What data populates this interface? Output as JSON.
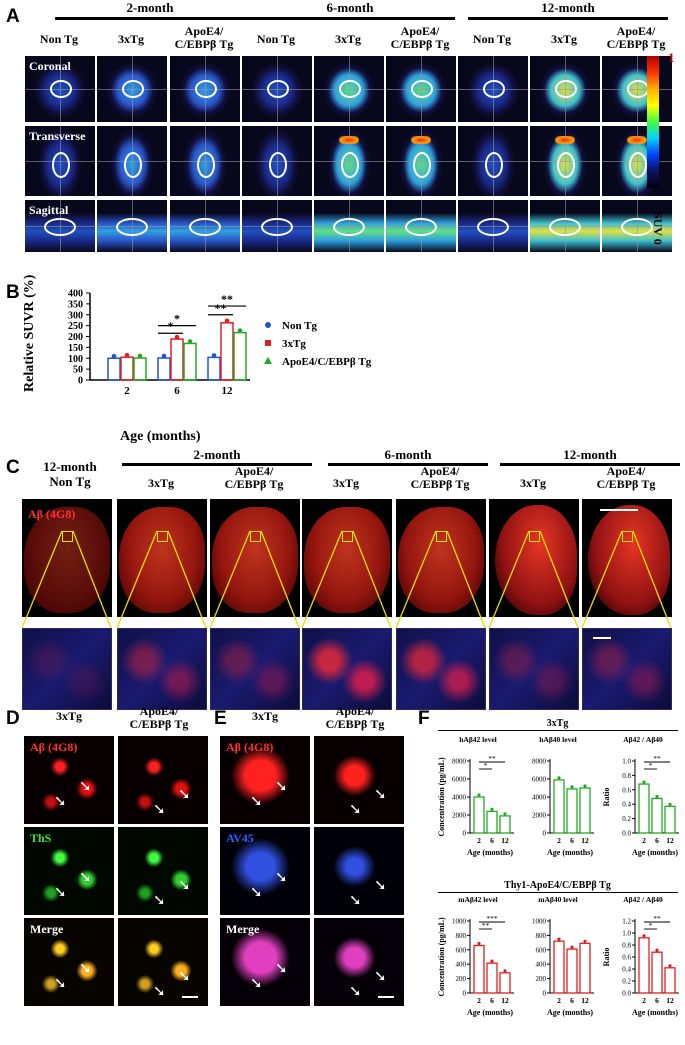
{
  "panels": {
    "A": "A",
    "B": "B",
    "C": "C",
    "D": "D",
    "E": "E",
    "F": "F"
  },
  "panelA": {
    "groups": [
      "2-month",
      "6-month",
      "12-month"
    ],
    "columns": [
      "Non Tg",
      "3xTg",
      "ApoE4/\nC/EBPβ Tg",
      "Non Tg",
      "3xTg",
      "ApoE4/\nC/EBPβ Tg",
      "Non Tg",
      "3xTg",
      "ApoE4/\nC/EBPβ Tg"
    ],
    "rows": [
      "Coronal",
      "Transverse",
      "Sagittal"
    ],
    "colorbar": {
      "max": "1",
      "min": "SUV 0"
    }
  },
  "panelC": {
    "first_col": "12-month\nNon Tg",
    "groups": [
      "2-month",
      "6-month",
      "12-month"
    ],
    "columns": [
      "3xTg",
      "ApoE4/\nC/EBPβ Tg",
      "3xTg",
      "ApoE4/\nC/EBPβ Tg",
      "3xTg",
      "ApoE4/\nC/EBPβ Tg"
    ],
    "stain": "Aβ (4G8)"
  },
  "panelD": {
    "columns": [
      "3xTg",
      "ApoE4/\nC/EBPβ Tg"
    ],
    "rows": [
      "Aβ (4G8)",
      "ThS",
      "Merge"
    ]
  },
  "panelE": {
    "columns": [
      "3xTg",
      "ApoE4/\nC/EBPβ Tg"
    ],
    "rows": [
      "Aβ (4G8)",
      "AV45",
      "Merge"
    ]
  },
  "panelF": {
    "top_group": "3xTg",
    "bottom_group": "Thy1-ApoE4/C/EBPβ Tg"
  },
  "chart_data": [
    {
      "id": "B",
      "type": "bar",
      "categories": [
        "2",
        "6",
        "12"
      ],
      "xlabel": "Age (months)",
      "ylabel": "Relative SUVR (%)",
      "ylim": [
        0,
        400
      ],
      "yticks": [
        0,
        50,
        100,
        150,
        200,
        250,
        300,
        350,
        400
      ],
      "series": [
        {
          "name": "Non Tg",
          "color": "#2255cc",
          "values": [
            100,
            101,
            104
          ]
        },
        {
          "name": "3xTg",
          "color": "#e02020",
          "values": [
            105,
            188,
            263
          ]
        },
        {
          "name": "ApoE4/C/EBPβ Tg",
          "color": "#22aa22",
          "values": [
            101,
            168,
            218
          ]
        }
      ],
      "significance": [
        {
          "label": "*",
          "group": "6",
          "pair": "Non Tg-3xTg"
        },
        {
          "label": "*",
          "group": "6",
          "pair": "Non Tg-ApoE4/C/EBPβ Tg"
        },
        {
          "label": "**",
          "group": "12",
          "pair": "Non Tg-3xTg"
        },
        {
          "label": "**",
          "group": "12",
          "pair": "Non Tg-ApoE4/C/EBPβ Tg"
        }
      ],
      "legend_position": "right"
    },
    {
      "id": "F1",
      "type": "bar",
      "title": "hAβ42 level",
      "categories": [
        "2",
        "6",
        "12"
      ],
      "values": [
        4000,
        2400,
        1900
      ],
      "ylim": [
        0,
        8000
      ],
      "yticks": [
        0,
        2000,
        4000,
        6000,
        8000
      ],
      "ylabel": "Concentration (pg/mL)",
      "xlabel": "Age (months)",
      "color": "#22aa22",
      "significance": [
        "*",
        "**"
      ]
    },
    {
      "id": "F2",
      "type": "bar",
      "title": "hAβ40 level",
      "categories": [
        "2",
        "6",
        "12"
      ],
      "values": [
        5900,
        4900,
        5000
      ],
      "ylim": [
        0,
        8000
      ],
      "yticks": [
        0,
        2000,
        4000,
        6000,
        8000
      ],
      "xlabel": "Age (months)",
      "color": "#22aa22",
      "significance": []
    },
    {
      "id": "F3",
      "type": "bar",
      "title": "Aβ42 / Aβ40",
      "categories": [
        "2",
        "6",
        "12"
      ],
      "values": [
        0.68,
        0.48,
        0.37
      ],
      "ylim": [
        0,
        1.0
      ],
      "yticks": [
        0.0,
        0.2,
        0.4,
        0.6,
        0.8,
        1.0
      ],
      "ylabel": "Ratio",
      "xlabel": "Age (months)",
      "color": "#22aa22",
      "significance": [
        "*",
        "**"
      ]
    },
    {
      "id": "F4",
      "type": "bar",
      "title": "mAβ42 level",
      "categories": [
        "2",
        "6",
        "12"
      ],
      "values": [
        660,
        415,
        280
      ],
      "ylim": [
        0,
        1000
      ],
      "yticks": [
        0,
        200,
        400,
        600,
        800,
        1000
      ],
      "ylabel": "Concentration (pg/mL)",
      "xlabel": "Age (months)",
      "color": "#e02020",
      "significance": [
        "**",
        "***"
      ]
    },
    {
      "id": "F5",
      "type": "bar",
      "title": "mAβ40 level",
      "categories": [
        "2",
        "6",
        "12"
      ],
      "values": [
        720,
        610,
        690
      ],
      "ylim": [
        0,
        1000
      ],
      "yticks": [
        0,
        200,
        400,
        600,
        800,
        1000
      ],
      "xlabel": "Age (months)",
      "color": "#e02020",
      "significance": []
    },
    {
      "id": "F6",
      "type": "bar",
      "title": "Aβ42 / Aβ40",
      "categories": [
        "2",
        "6",
        "12"
      ],
      "values": [
        0.92,
        0.68,
        0.42
      ],
      "ylim": [
        0,
        1.2
      ],
      "yticks": [
        0.0,
        0.2,
        0.4,
        0.6,
        0.8,
        1.0,
        1.2
      ],
      "ylabel": "Ratio",
      "xlabel": "Age (months)",
      "color": "#e02020",
      "significance": [
        "*",
        "**"
      ]
    }
  ]
}
